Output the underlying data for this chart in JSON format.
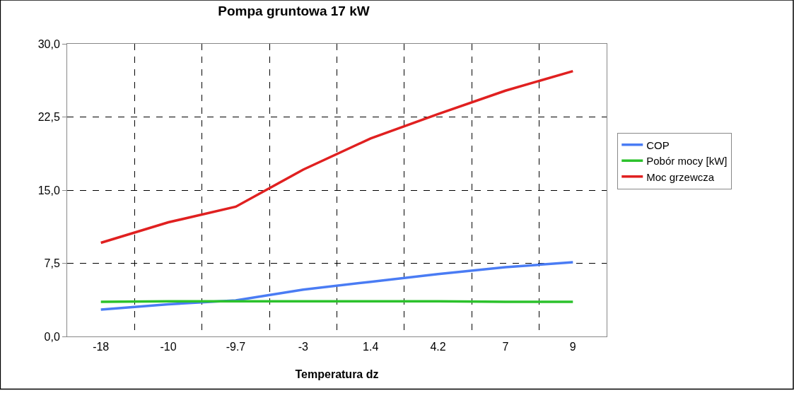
{
  "chart_data": {
    "type": "line",
    "title": "Pompa gruntowa 17 kW",
    "xlabel": "Temperatura dz",
    "categories": [
      "-18",
      "-10",
      "-9.7",
      "-3",
      "1.4",
      "4.2",
      "7",
      "9"
    ],
    "series": [
      {
        "name": "COP",
        "color": "#4a7cf4",
        "values": [
          2.75,
          3.3,
          3.7,
          4.8,
          5.6,
          6.4,
          7.1,
          7.6
        ]
      },
      {
        "name": "Pobór mocy [kW]",
        "color": "#2cc22c",
        "values": [
          3.55,
          3.6,
          3.6,
          3.6,
          3.6,
          3.6,
          3.55,
          3.55
        ]
      },
      {
        "name": "Moc grzewcza",
        "color": "#e02020",
        "values": [
          9.6,
          11.7,
          13.3,
          17.1,
          20.3,
          22.8,
          25.2,
          27.2
        ]
      }
    ],
    "ylim": [
      0,
      30
    ],
    "yticks": [
      {
        "value": 0,
        "label": "0,0"
      },
      {
        "value": 7.5,
        "label": "7,5"
      },
      {
        "value": 15,
        "label": "15,0"
      },
      {
        "value": 22.5,
        "label": "22,5"
      },
      {
        "value": 30,
        "label": "30,0"
      }
    ],
    "grid": true,
    "legend": "right",
    "line_style": "solid",
    "marker": "none"
  }
}
